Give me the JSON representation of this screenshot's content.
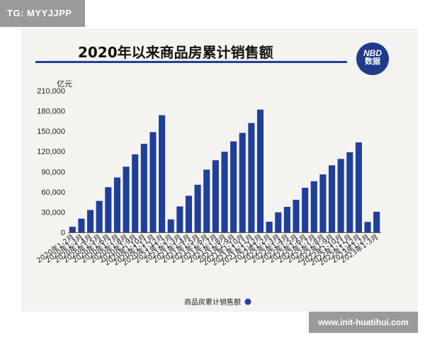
{
  "corner_tag": "TG: MYYJJPP",
  "footer_url": "www.init-huatihui.com",
  "logo": {
    "line1": "NBD",
    "line2": "数据"
  },
  "colors": {
    "bar": "#1f3f9a",
    "accent": "#1f3f9a",
    "panel": "#f5f3ef"
  },
  "chart_data": {
    "type": "bar",
    "title": "2020年以来商品房累计销售额",
    "ylabel": "亿元",
    "xlabel": "",
    "ylim": [
      0,
      210000
    ],
    "yticks": [
      "210,000",
      "180,000",
      "150,000",
      "120,000",
      "90,000",
      "60,000",
      "30,000",
      "0"
    ],
    "ytick_values": [
      210000,
      180000,
      150000,
      120000,
      90000,
      60000,
      30000,
      0
    ],
    "grid": false,
    "legend": "bottom-center",
    "categories": [
      "2020年1-2月",
      "2020年1-3月",
      "2020年1-4月",
      "2020年1-5月",
      "2020年1-6月",
      "2020年1-7月",
      "2020年1-8月",
      "2020年1-9月",
      "2020年1-10月",
      "2020年1-11月",
      "2020年1-12月",
      "2021年1-2月",
      "2021年1-3月",
      "2021年1-4月",
      "2021年1-5月",
      "2021年1-6月",
      "2021年1-7月",
      "2021年1-8月",
      "2021年1-9月",
      "2021年1-10月",
      "2021年1-11月",
      "2021年1-12月",
      "2022年1-2月",
      "2022年1-3月",
      "2022年1-4月",
      "2022年1-5月",
      "2022年1-6月",
      "2022年1-7月",
      "2022年1-8月",
      "2022年1-9月",
      "2022年1-10月",
      "2022年1-11月",
      "2022年1-12月",
      "2023年1-2月",
      "2023年1-3月"
    ],
    "series": [
      {
        "name": "商品房累计销售额",
        "values": [
          8203,
          20365,
          33100,
          46606,
          66895,
          81329,
          97384,
          115647,
          131258,
          148508,
          173613,
          19151,
          38378,
          54209,
          70535,
          92931,
          106868,
          119459,
          134795,
          147404,
          162017,
          181930,
          15703,
          29655,
          37766,
          48256,
          66072,
          75763,
          85870,
          99380,
          108832,
          118648,
          133308,
          15459,
          30545
        ]
      }
    ]
  }
}
